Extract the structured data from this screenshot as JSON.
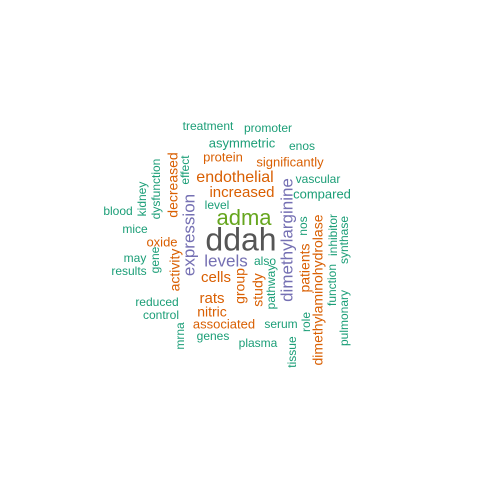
{
  "colors": {
    "teal": "#1b9e77",
    "orange": "#d95f02",
    "purple": "#7570b3",
    "green": "#66a61e",
    "gray": "#555555"
  },
  "words": [
    {
      "text": "treatment",
      "color": "teal"
    },
    {
      "text": "promoter",
      "color": "teal"
    },
    {
      "text": "asymmetric",
      "color": "teal"
    },
    {
      "text": "enos",
      "color": "teal"
    },
    {
      "text": "protein",
      "color": "orange"
    },
    {
      "text": "significantly",
      "color": "orange"
    },
    {
      "text": "endothelial",
      "color": "orange"
    },
    {
      "text": "vascular",
      "color": "teal"
    },
    {
      "text": "increased",
      "color": "orange"
    },
    {
      "text": "compared",
      "color": "teal"
    },
    {
      "text": "level",
      "color": "teal"
    },
    {
      "text": "blood",
      "color": "teal"
    },
    {
      "text": "adma",
      "color": "green"
    },
    {
      "text": "mice",
      "color": "teal"
    },
    {
      "text": "oxide",
      "color": "orange"
    },
    {
      "text": "ddah",
      "color": "gray"
    },
    {
      "text": "may",
      "color": "teal"
    },
    {
      "text": "results",
      "color": "teal"
    },
    {
      "text": "levels",
      "color": "purple"
    },
    {
      "text": "also",
      "color": "teal"
    },
    {
      "text": "cells",
      "color": "orange"
    },
    {
      "text": "rats",
      "color": "orange"
    },
    {
      "text": "reduced",
      "color": "teal"
    },
    {
      "text": "nitric",
      "color": "orange"
    },
    {
      "text": "control",
      "color": "teal"
    },
    {
      "text": "associated",
      "color": "orange"
    },
    {
      "text": "serum",
      "color": "teal"
    },
    {
      "text": "genes",
      "color": "teal"
    },
    {
      "text": "plasma",
      "color": "teal"
    },
    {
      "text": "kidney",
      "color": "teal"
    },
    {
      "text": "dysfunction",
      "color": "teal"
    },
    {
      "text": "effect",
      "color": "teal"
    },
    {
      "text": "decreased",
      "color": "orange"
    },
    {
      "text": "gene",
      "color": "teal"
    },
    {
      "text": "activity",
      "color": "orange"
    },
    {
      "text": "expression",
      "color": "purple"
    },
    {
      "text": "mrna",
      "color": "teal"
    },
    {
      "text": "group",
      "color": "orange"
    },
    {
      "text": "study",
      "color": "orange"
    },
    {
      "text": "pathway",
      "color": "teal"
    },
    {
      "text": "dimethylarginine",
      "color": "purple"
    },
    {
      "text": "tissue",
      "color": "teal"
    },
    {
      "text": "role",
      "color": "teal"
    },
    {
      "text": "patients",
      "color": "orange"
    },
    {
      "text": "nos",
      "color": "teal"
    },
    {
      "text": "dimethylaminohydrolase",
      "color": "orange"
    },
    {
      "text": "function",
      "color": "teal"
    },
    {
      "text": "inhibitor",
      "color": "teal"
    },
    {
      "text": "pulmonary",
      "color": "teal"
    },
    {
      "text": "synthase",
      "color": "teal"
    }
  ]
}
